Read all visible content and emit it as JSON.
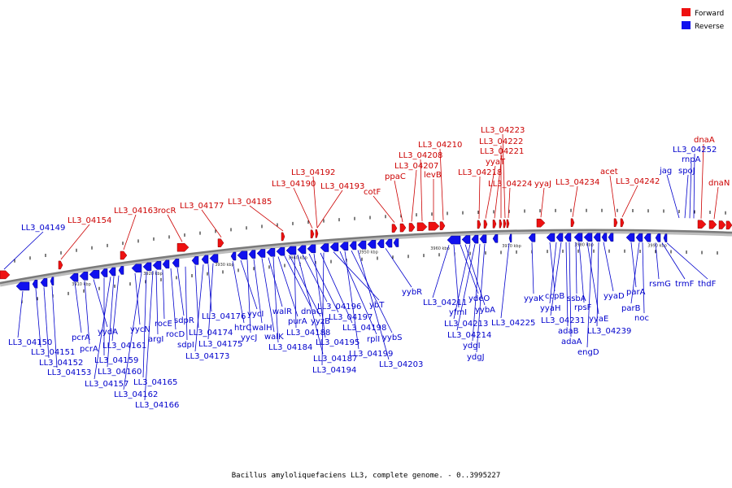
{
  "legend": {
    "forward_label": "Forward",
    "reverse_label": "Reverse",
    "forward_color": "#ee1111",
    "reverse_color": "#1111ee"
  },
  "caption": "Bacillus amyloliquefaciens LL3, complete genome. - 0..3995227",
  "colors": {
    "forward_label": "#cc0000",
    "reverse_label": "#0000cc",
    "backbone": "#7a7a7a"
  },
  "scale_labels": [
    "3910 kbp",
    "3920 kbp",
    "3930 kbp",
    "3940 kbp",
    "3950 kbp",
    "3960 kbp",
    "3970 kbp",
    "3980 kbp",
    "3990 kbp"
  ],
  "forward_labels": [
    "LL3_04149",
    "LL3_04154",
    "LL3_04163",
    "rocR",
    "LL3_04177",
    "LL3_04185",
    "LL3_04190",
    "LL3_04192",
    "LL3_04193",
    "cotF",
    "ppaC",
    "LL3_04207",
    "LL3_04208",
    "LL3_04210",
    "levB",
    "LL3_04218",
    "yyaT",
    "LL3_04221",
    "LL3_04222",
    "LL3_04223",
    "LL3_04224",
    "yyaJ",
    "LL3_04234",
    "acet",
    "LL3_04242",
    "jag",
    "spoJ",
    "rnpA",
    "LL3_04252",
    "dnaA",
    "dnaN"
  ],
  "reverse_labels": [
    "LL3_04150",
    "LL3_04151",
    "LL3_04152",
    "LL3_04153",
    "pcrA",
    "pcrA",
    "yydA",
    "LL3_04159",
    "LL3_04157",
    "LL3_04160",
    "LL3_04161",
    "yycN",
    "LL3_04162",
    "LL3_04165",
    "LL3_04166",
    "argI",
    "rocE",
    "rocD",
    "sdpR",
    "sdpI",
    "LL3_04174",
    "LL3_04173",
    "LL3_04176",
    "LL3_04175",
    "htrC",
    "yycI",
    "yycJ",
    "walH",
    "walK",
    "walR",
    "LL3_04184",
    "purA",
    "dnaC",
    "yyzB",
    "LL3_04188",
    "LL3_04187",
    "LL3_04196",
    "LL3_04197",
    "LL3_04195",
    "LL3_04198",
    "LL3_04194",
    "ybT",
    "rplI",
    "LL3_04199",
    "yybS",
    "LL3_04203",
    "yybR",
    "LL3_04211",
    "yfmI",
    "ydeO",
    "yybA",
    "LL3_04213",
    "LL3_04214",
    "ydgI",
    "ydgJ",
    "LL3_04225",
    "yyaK",
    "ccpB",
    "yyaH",
    "LL3_04231",
    "adaB",
    "adaA",
    "ssbA",
    "rpsF",
    "yyaE",
    "engD",
    "LL3_04239",
    "yyaD",
    "parA",
    "parB",
    "noc",
    "rsmG",
    "trmF",
    "thdF"
  ]
}
